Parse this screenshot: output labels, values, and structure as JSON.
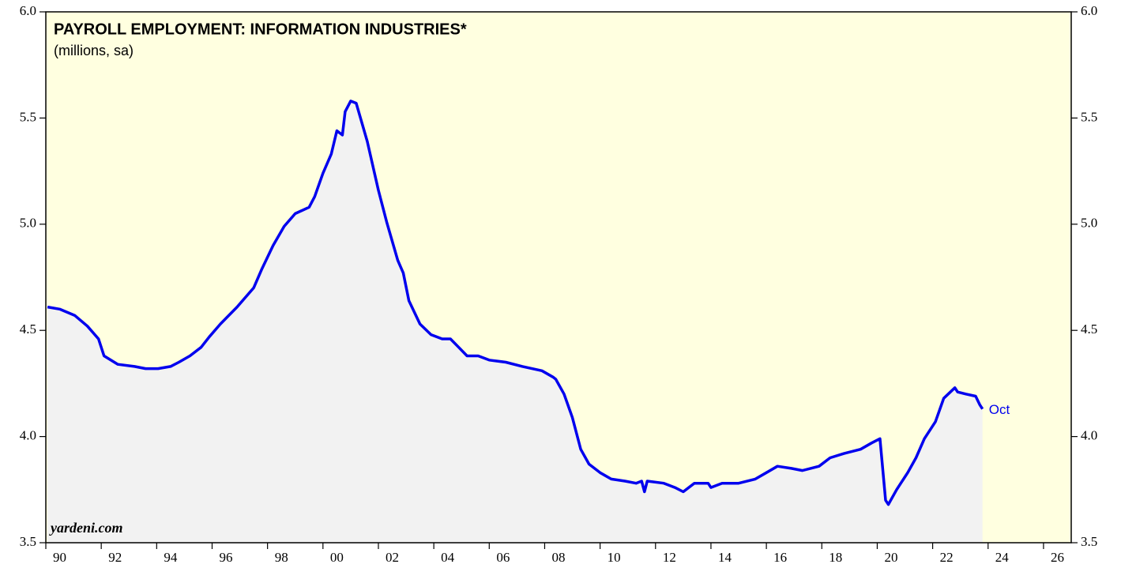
{
  "chart_data": {
    "type": "line",
    "title": "PAYROLL EMPLOYMENT: INFORMATION INDUSTRIES*",
    "subtitle": "(millions, sa)",
    "source": "yardeni.com",
    "annotation": "Oct",
    "background": "#ffffe0",
    "fill_color": "#f2f2f2",
    "x": [
      1990.06,
      1990.5,
      1991.05,
      1991.5,
      1991.9,
      1992.1,
      1992.6,
      1993.2,
      1993.6,
      1994.05,
      1994.5,
      1994.8,
      1995.2,
      1995.6,
      1995.9,
      1996.3,
      1996.9,
      1997.5,
      1997.8,
      1998.2,
      1998.6,
      1999.0,
      1999.5,
      1999.7,
      2000.0,
      2000.3,
      2000.5,
      2000.7,
      2000.8,
      2001.0,
      2001.2,
      2001.6,
      2002.0,
      2002.3,
      2002.7,
      2002.9,
      2003.1,
      2003.5,
      2003.9,
      2004.3,
      2004.6,
      2004.9,
      2005.2,
      2005.6,
      2006.0,
      2006.6,
      2007.2,
      2007.9,
      2008.3,
      2008.4,
      2008.7,
      2009.0,
      2009.3,
      2009.6,
      2010.0,
      2010.4,
      2010.9,
      2011.3,
      2011.5,
      2011.6,
      2011.7,
      2012.3,
      2012.7,
      2013.0,
      2013.4,
      2013.9,
      2014.0,
      2014.4,
      2015.0,
      2015.6,
      2016.0,
      2016.4,
      2016.9,
      2017.3,
      2017.9,
      2018.3,
      2018.8,
      2019.4,
      2019.8,
      2020.1,
      2020.3,
      2020.4,
      2020.7,
      2021.1,
      2021.4,
      2021.7,
      2022.1,
      2022.4,
      2022.8,
      2022.9,
      2023.2,
      2023.55,
      2023.7,
      2023.8
    ],
    "series": [
      {
        "name": "Information industries",
        "color": "#0000ee",
        "values": [
          4.61,
          4.6,
          4.57,
          4.52,
          4.46,
          4.38,
          4.34,
          4.33,
          4.32,
          4.32,
          4.33,
          4.35,
          4.38,
          4.42,
          4.47,
          4.53,
          4.61,
          4.7,
          4.79,
          4.9,
          4.99,
          5.05,
          5.08,
          5.13,
          5.24,
          5.33,
          5.44,
          5.42,
          5.53,
          5.58,
          5.57,
          5.39,
          5.16,
          5.01,
          4.83,
          4.77,
          4.64,
          4.53,
          4.48,
          4.46,
          4.46,
          4.42,
          4.38,
          4.38,
          4.36,
          4.35,
          4.33,
          4.31,
          4.28,
          4.27,
          4.2,
          4.09,
          3.94,
          3.87,
          3.83,
          3.8,
          3.79,
          3.78,
          3.79,
          3.74,
          3.79,
          3.78,
          3.76,
          3.74,
          3.78,
          3.78,
          3.76,
          3.78,
          3.78,
          3.8,
          3.83,
          3.86,
          3.85,
          3.84,
          3.86,
          3.9,
          3.92,
          3.94,
          3.97,
          3.99,
          3.7,
          3.68,
          3.75,
          3.83,
          3.9,
          3.99,
          4.07,
          4.18,
          4.23,
          4.21,
          4.2,
          4.19,
          4.15,
          4.13
        ]
      }
    ],
    "xlim": [
      1990,
      2027
    ],
    "xticks": [
      {
        "value": 1990,
        "label": "90"
      },
      {
        "value": 1992,
        "label": "92"
      },
      {
        "value": 1994,
        "label": "94"
      },
      {
        "value": 1996,
        "label": "96"
      },
      {
        "value": 1998,
        "label": "98"
      },
      {
        "value": 2000,
        "label": "00"
      },
      {
        "value": 2002,
        "label": "02"
      },
      {
        "value": 2004,
        "label": "04"
      },
      {
        "value": 2006,
        "label": "06"
      },
      {
        "value": 2008,
        "label": "08"
      },
      {
        "value": 2010,
        "label": "10"
      },
      {
        "value": 2012,
        "label": "12"
      },
      {
        "value": 2014,
        "label": "14"
      },
      {
        "value": 2016,
        "label": "16"
      },
      {
        "value": 2018,
        "label": "18"
      },
      {
        "value": 2020,
        "label": "20"
      },
      {
        "value": 2022,
        "label": "22"
      },
      {
        "value": 2024,
        "label": "24"
      },
      {
        "value": 2026,
        "label": "26"
      }
    ],
    "ylim": [
      3.5,
      6.0
    ],
    "yticks": [
      3.5,
      {
        "value": 4,
        "label": "4.0"
      },
      4.5,
      {
        "value": 5,
        "label": "5.0"
      },
      5.5,
      {
        "value": 6,
        "label": "6.0"
      }
    ],
    "y2lim": [
      3.5,
      6.0
    ],
    "y2ticks": [
      3.5,
      {
        "value": 4,
        "label": "4.0"
      },
      4.5,
      {
        "value": 5,
        "label": "5.0"
      },
      5.5,
      {
        "value": 6,
        "label": "6.0"
      }
    ]
  }
}
